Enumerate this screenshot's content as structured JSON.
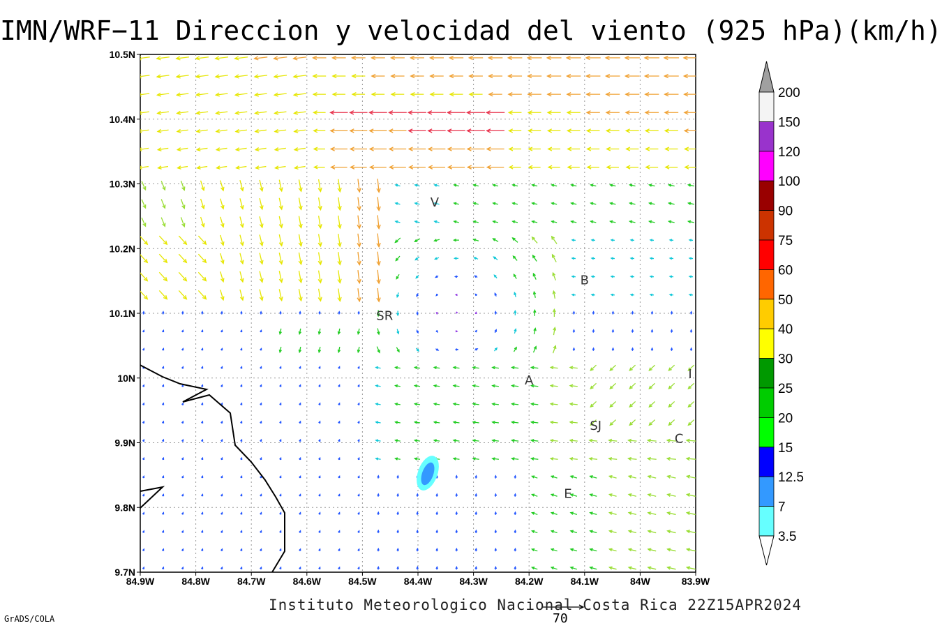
{
  "title": "IMN/WRF−11 Direccion y velocidad del viento (925 hPa)(km/h)",
  "footer": "Instituto Meteorologico Nacional Costa Rica 22Z15APR2024",
  "grads_label": "GrADS/COLA",
  "reference_vector": {
    "value": "70"
  },
  "map": {
    "lon_range": [
      -84.9,
      -83.9
    ],
    "lat_range": [
      9.7,
      10.5
    ],
    "x_ticks": [
      "84.9W",
      "84.8W",
      "84.7W",
      "84.6W",
      "84.5W",
      "84.4W",
      "84.3W",
      "84.2W",
      "84.1W",
      "84W",
      "83.9W"
    ],
    "y_ticks": [
      "10.5N",
      "10.4N",
      "10.3N",
      "10.2N",
      "10.1N",
      "10N",
      "9.9N",
      "9.8N",
      "9.7N"
    ],
    "grid": true,
    "places": [
      {
        "label": "V",
        "lon": -84.37,
        "lat": 10.265
      },
      {
        "label": "B",
        "lon": -84.1,
        "lat": 10.145
      },
      {
        "label": "SR",
        "lon": -84.46,
        "lat": 10.09
      },
      {
        "label": "A",
        "lon": -84.2,
        "lat": 9.99
      },
      {
        "label": "I",
        "lon": -83.91,
        "lat": 10.0
      },
      {
        "label": "SJ",
        "lon": -84.08,
        "lat": 9.92
      },
      {
        "label": "C",
        "lon": -83.93,
        "lat": 9.9
      },
      {
        "label": "E",
        "lon": -84.13,
        "lat": 9.815
      }
    ]
  },
  "colorbar": {
    "labels": [
      "200",
      "150",
      "120",
      "100",
      "90",
      "75",
      "60",
      "50",
      "40",
      "30",
      "25",
      "20",
      "15",
      "12.5",
      "7",
      "3.5"
    ],
    "colors": [
      "#a0a0a0",
      "#f4f4f4",
      "#9933cc",
      "#ff00ff",
      "#990000",
      "#cc3300",
      "#ff0000",
      "#ff6600",
      "#ffcc00",
      "#ffff00",
      "#009900",
      "#00cc00",
      "#00ff00",
      "#0000ff",
      "#3399ff",
      "#66ffff"
    ]
  }
}
